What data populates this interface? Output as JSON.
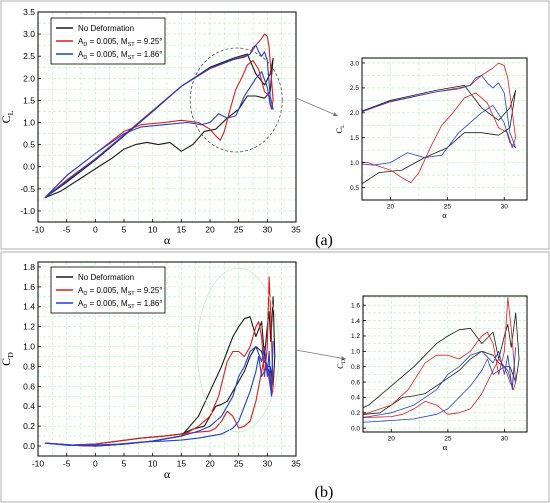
{
  "colors": {
    "black": "#1a1a1a",
    "red": "#e31a1c",
    "blue": "#1f3fd6",
    "grid": "#b6f0b6",
    "ellipse": "#555555",
    "arrow": "#777777"
  },
  "chart_data": [
    {
      "type": "line",
      "panel_label": "(a)",
      "xlabel": "α",
      "ylabel": "C_L",
      "ylabel_main": "C",
      "ylabel_sub": "L",
      "xlim": [
        -10,
        35
      ],
      "ylim": [
        -1.25,
        3.5
      ],
      "xticks": [
        -10,
        -5,
        0,
        5,
        10,
        15,
        20,
        25,
        30,
        35
      ],
      "yticks": [
        -1.0,
        -0.5,
        0.0,
        0.5,
        1.0,
        1.5,
        2.0,
        2.5,
        3.0,
        3.5
      ],
      "legend": {
        "placement": "top-left",
        "entries": [
          {
            "key": "black",
            "text": "No Deformation"
          },
          {
            "key": "red",
            "text": "A_D = 0.005, M_ST = 9.25°",
            "parts": [
              "A",
              "D",
              " = 0.005, M",
              "ST",
              " = 9.25°"
            ]
          },
          {
            "key": "blue",
            "text": "A_D = 0.005, M_ST = 1.86°",
            "parts": [
              "A",
              "D",
              " = 0.005, M",
              "ST",
              " = 1.86°"
            ]
          }
        ]
      },
      "series": [
        {
          "key": "black",
          "x": [
            -8.8,
            -5,
            0,
            5,
            10,
            15,
            20,
            24,
            26,
            26.5,
            27,
            28,
            29.5,
            30.5,
            31,
            30.5,
            29.5,
            28,
            26.5,
            25,
            23,
            21,
            19,
            17,
            15,
            13,
            11,
            9,
            7,
            5,
            3,
            0,
            -3,
            -6,
            -8.8
          ],
          "y": [
            -0.7,
            -0.35,
            0.15,
            0.7,
            1.25,
            1.82,
            2.25,
            2.45,
            2.53,
            2.55,
            2.4,
            2.1,
            1.85,
            2.1,
            2.45,
            1.7,
            1.55,
            1.6,
            1.6,
            1.3,
            1.1,
            0.85,
            0.8,
            0.5,
            0.35,
            0.55,
            0.5,
            0.55,
            0.5,
            0.4,
            0.2,
            -0.05,
            -0.3,
            -0.55,
            -0.7
          ]
        },
        {
          "key": "red",
          "x": [
            -8.8,
            -5,
            0,
            5,
            10,
            15,
            20,
            24,
            26,
            27,
            28,
            29,
            29.5,
            30,
            30.3,
            30.6,
            31,
            30.7,
            30.3,
            29.5,
            28.5,
            27.5,
            26.5,
            25.5,
            24.5,
            23.5,
            22.5,
            21.8,
            21,
            20,
            18,
            15,
            12,
            8,
            5,
            0,
            -5,
            -8.8
          ],
          "y": [
            -0.7,
            -0.3,
            0.18,
            0.72,
            1.27,
            1.82,
            2.22,
            2.42,
            2.5,
            2.55,
            2.75,
            2.9,
            3.0,
            2.95,
            2.7,
            2.2,
            1.5,
            1.3,
            1.6,
            1.7,
            2.2,
            2.4,
            2.3,
            2.0,
            1.75,
            1.3,
            0.8,
            0.6,
            0.7,
            0.85,
            1.0,
            1.05,
            1.0,
            0.95,
            0.8,
            0.3,
            -0.2,
            -0.7
          ]
        },
        {
          "key": "blue",
          "x": [
            -8.8,
            -5,
            0,
            5,
            10,
            15,
            20,
            24,
            26,
            27,
            27.5,
            28,
            28.5,
            29,
            29.5,
            30,
            30.5,
            31,
            30.5,
            30,
            29,
            28,
            26,
            24.5,
            23,
            21.5,
            20,
            18.5,
            16,
            12,
            8,
            5,
            0,
            -5,
            -8.8
          ],
          "y": [
            -0.7,
            -0.32,
            0.17,
            0.71,
            1.26,
            1.82,
            2.23,
            2.42,
            2.48,
            2.55,
            2.7,
            2.75,
            2.6,
            2.5,
            2.6,
            2.4,
            1.6,
            1.3,
            1.4,
            1.8,
            2.15,
            2.0,
            1.6,
            1.15,
            1.1,
            1.2,
            1.0,
            0.95,
            1.0,
            0.95,
            0.9,
            0.75,
            0.3,
            -0.2,
            -0.7
          ]
        }
      ],
      "inset": {
        "xlim": [
          17.5,
          32
        ],
        "ylim": [
          0.25,
          3.1
        ],
        "xticks": [
          20,
          25,
          30
        ],
        "yticks": [
          0.5,
          1.0,
          1.5,
          2.0,
          2.5,
          3.0
        ],
        "xlabel": "α",
        "ylabel_main": "C",
        "ylabel_sub": "L"
      }
    },
    {
      "type": "line",
      "panel_label": "(b)",
      "xlabel": "α",
      "ylabel": "C_D",
      "ylabel_main": "C",
      "ylabel_sub": "D",
      "xlim": [
        -10,
        35
      ],
      "ylim": [
        -0.1,
        1.85
      ],
      "xticks": [
        -10,
        -5,
        0,
        5,
        10,
        15,
        20,
        25,
        30,
        35
      ],
      "yticks": [
        0.0,
        0.2,
        0.4,
        0.6,
        0.8,
        1.0,
        1.2,
        1.4,
        1.6,
        1.8
      ],
      "legend": {
        "placement": "top-left",
        "entries": [
          {
            "key": "black",
            "text": "No Deformation"
          },
          {
            "key": "red",
            "text": "A_D = 0.005, M_ST = 9.25°",
            "parts": [
              "A",
              "D",
              " = 0.005, M",
              "ST",
              " = 9.25°"
            ]
          },
          {
            "key": "blue",
            "text": "A_D = 0.005, M_ST = 1.86°",
            "parts": [
              "A",
              "D",
              " = 0.005, M",
              "ST",
              " = 1.86°"
            ]
          }
        ]
      },
      "series": [
        {
          "key": "black",
          "x": [
            -8.8,
            -5,
            0,
            5,
            10,
            15,
            18,
            20,
            22,
            23,
            24,
            25,
            26,
            27,
            28,
            29,
            29.5,
            30,
            30.3,
            30.6,
            31,
            31.3,
            31,
            30.5,
            30,
            29.5,
            29,
            28,
            27,
            26,
            25,
            24,
            23,
            22,
            21,
            20,
            19,
            17,
            15,
            12,
            8,
            4,
            0,
            -4,
            -8.8
          ],
          "y": [
            0.03,
            0.01,
            0.0,
            0.02,
            0.05,
            0.1,
            0.3,
            0.55,
            0.8,
            0.95,
            1.1,
            1.2,
            1.28,
            1.3,
            1.1,
            1.25,
            0.9,
            1.2,
            1.35,
            1.05,
            1.5,
            0.9,
            0.6,
            0.8,
            0.8,
            0.85,
            0.95,
            1.0,
            0.9,
            0.75,
            0.65,
            0.55,
            0.45,
            0.42,
            0.4,
            0.3,
            0.2,
            0.17,
            0.12,
            0.1,
            0.08,
            0.05,
            0.02,
            0.01,
            0.03
          ]
        },
        {
          "key": "red",
          "x": [
            -8.8,
            -5,
            0,
            5,
            10,
            15,
            18,
            20,
            21.5,
            23,
            24,
            25,
            26,
            27,
            28,
            28.5,
            29,
            29.5,
            30,
            30.3,
            30.6,
            31,
            30.8,
            30.5,
            30,
            29.5,
            29,
            28,
            27,
            26,
            25,
            24,
            23,
            22,
            21,
            20,
            18,
            15,
            12,
            8,
            4,
            0,
            -4,
            -8.8
          ],
          "y": [
            0.03,
            0.01,
            0.0,
            0.02,
            0.05,
            0.1,
            0.2,
            0.3,
            0.5,
            0.85,
            0.95,
            0.95,
            0.9,
            1.0,
            1.2,
            1.25,
            1.1,
            0.7,
            1.0,
            1.7,
            1.3,
            0.6,
            0.5,
            0.6,
            0.8,
            0.9,
            0.75,
            0.45,
            0.25,
            0.2,
            0.18,
            0.3,
            0.35,
            0.25,
            0.18,
            0.15,
            0.14,
            0.12,
            0.1,
            0.08,
            0.05,
            0.02,
            0.01,
            0.03
          ]
        },
        {
          "key": "blue",
          "x": [
            -8.8,
            -5,
            0,
            5,
            10,
            15,
            18,
            20,
            22,
            24,
            25,
            26,
            27,
            28,
            29,
            29.5,
            30,
            30.3,
            30.7,
            31,
            30.7,
            30.3,
            30,
            29,
            28.5,
            28,
            27,
            26,
            25,
            24,
            22,
            20,
            18,
            15,
            12,
            8,
            4,
            0,
            -4,
            -8.8
          ],
          "y": [
            0.03,
            0.01,
            0.0,
            0.02,
            0.05,
            0.1,
            0.15,
            0.2,
            0.3,
            0.5,
            0.7,
            0.8,
            0.95,
            1.0,
            0.85,
            1.0,
            0.7,
            0.95,
            0.5,
            1.05,
            0.55,
            0.75,
            0.8,
            0.7,
            0.9,
            0.75,
            0.55,
            0.4,
            0.25,
            0.18,
            0.12,
            0.1,
            0.08,
            0.06,
            0.05,
            0.04,
            0.02,
            0.01,
            0.01,
            0.03
          ]
        }
      ],
      "inset": {
        "xlim": [
          17.5,
          32
        ],
        "ylim": [
          -0.05,
          1.72
        ],
        "xticks": [
          20,
          25,
          30
        ],
        "yticks": [
          0.0,
          0.2,
          0.4,
          0.6,
          0.8,
          1.0,
          1.2,
          1.4,
          1.6
        ],
        "xlabel": "α",
        "ylabel_main": "C",
        "ylabel_sub": "D"
      }
    }
  ]
}
